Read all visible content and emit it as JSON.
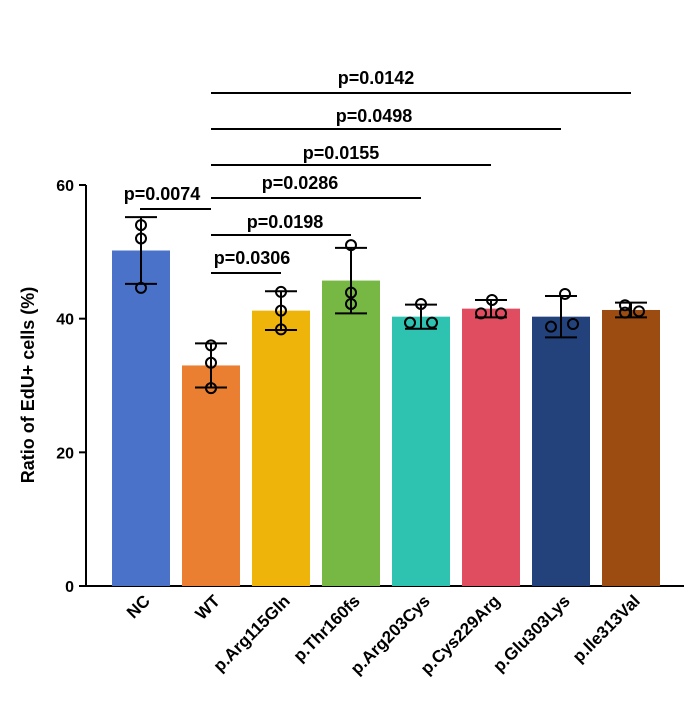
{
  "chart_data": {
    "type": "bar",
    "ylabel": "Ratio of EdU+ cells (%)",
    "ylim": [
      0,
      60
    ],
    "yticks": [
      0,
      20,
      40,
      60
    ],
    "grid": false,
    "categories": [
      "NC",
      "WT",
      "p.Arg115Gln",
      "p.Thr160fs",
      "p.Arg203Cys",
      "p.Cys229Arg",
      "p.Glu303Lys",
      "p.Ile313Val"
    ],
    "values": [
      50.2,
      33.0,
      41.2,
      45.7,
      40.3,
      41.5,
      40.3,
      41.3
    ],
    "errors": [
      5.0,
      3.3,
      2.9,
      4.9,
      1.8,
      1.3,
      3.1,
      1.1
    ],
    "points": [
      [
        54.0,
        52.0,
        44.6
      ],
      [
        36.0,
        33.4,
        29.6
      ],
      [
        44.0,
        38.4,
        41.2
      ],
      [
        51.0,
        42.2,
        43.9
      ],
      [
        42.2,
        39.4,
        39.4
      ],
      [
        42.8,
        40.8,
        40.8
      ],
      [
        43.7,
        38.8,
        39.2
      ],
      [
        42.0,
        40.9,
        41.1
      ]
    ],
    "colors": [
      "#4a72c9",
      "#ea7e31",
      "#efb40a",
      "#76b843",
      "#2ec2b1",
      "#e04c60",
      "#23427b",
      "#9c4c10"
    ],
    "comparisons": [
      {
        "from": 0,
        "to": 1,
        "label": "p=0.0074"
      },
      {
        "from": 1,
        "to": 2,
        "label": "p=0.0306"
      },
      {
        "from": 1,
        "to": 3,
        "label": "p=0.0198"
      },
      {
        "from": 1,
        "to": 4,
        "label": "p=0.0286"
      },
      {
        "from": 1,
        "to": 5,
        "label": "p=0.0155"
      },
      {
        "from": 1,
        "to": 6,
        "label": "p=0.0498"
      },
      {
        "from": 1,
        "to": 7,
        "label": "p=0.0142"
      }
    ]
  }
}
